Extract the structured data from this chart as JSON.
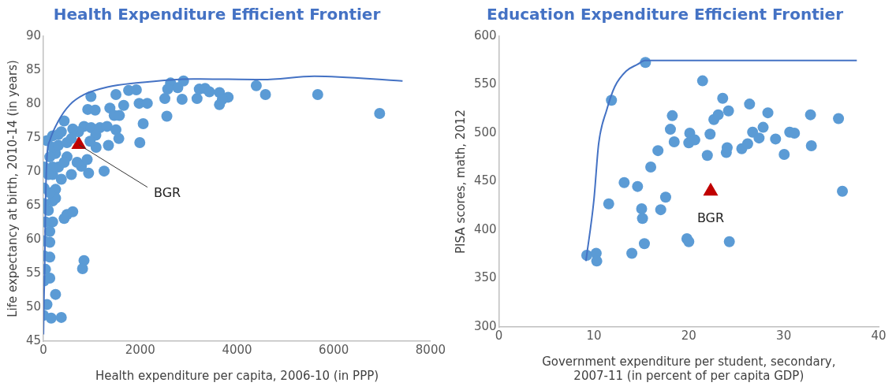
{
  "chart_data": [
    {
      "type": "scatter",
      "title": "Health Expenditure Efficient Frontier",
      "xlabel": "Health expenditure per capita, 2006-10 (in PPP)",
      "ylabel": "Life expectancy at birth, 2010-14 (in years)",
      "xlim": [
        0,
        8000
      ],
      "xticks": [
        0,
        2000,
        4000,
        6000,
        8000
      ],
      "ylim": [
        45,
        90
      ],
      "yticks": [
        45,
        50,
        55,
        60,
        65,
        70,
        75,
        80,
        85,
        90
      ],
      "grid": false,
      "legend": false,
      "annotations": [
        {
          "text": "BGR",
          "x": 731,
          "y": 74
        }
      ],
      "series": [
        {
          "type": "line",
          "marker": "none",
          "color": "#4472c4",
          "x": [
            0,
            12,
            24,
            42,
            72,
            131,
            309,
            547,
            844,
            1320,
            1914,
            3102,
            4528,
            5597,
            7421
          ],
          "values": [
            46,
            51.7,
            55,
            64.8,
            72.2,
            74.6,
            77.5,
            79.9,
            81.4,
            82.5,
            83.1,
            83.7,
            83.6,
            84.1,
            83.4
          ]
        },
        {
          "type": "scatter",
          "marker": "circle",
          "color": "#5b9bd5",
          "x": [
            981,
            1498,
            915,
            1069,
            1373,
            1658,
            1462,
            1569,
            1760,
            1920,
            1979,
            2145,
            2061,
            1991,
            2550,
            2509,
            2627,
            2776,
            2895,
            2865,
            2568,
            3174,
            3221,
            3340,
            3429,
            3637,
            3816,
            3637,
            3697,
            4398,
            4588,
            5668,
            6947,
            428,
            190,
            309,
            838,
            986,
            1165,
            1314,
            1498,
            1557,
            1343,
            1088,
            725,
            606,
            1082,
            1254,
            933,
            784,
            577,
            369,
            250,
            309,
            487,
            695,
            903,
            428,
            250,
            190,
            131,
            12,
            12,
            12,
            190,
            250,
            42,
            190,
            131,
            12,
            131,
            12,
            131,
            42,
            131,
            12,
            72,
            250,
            0,
            160,
            369,
            487,
            606,
            428,
            838,
            808,
            190,
            131,
            309,
            487,
            369,
            576,
            963,
            72,
            190,
            101,
            101
          ],
          "values": [
            81.1,
            81.4,
            79.2,
            79.1,
            79.4,
            79.8,
            78.3,
            78.3,
            82.0,
            82.1,
            80.1,
            80.1,
            77.1,
            74.3,
            78.2,
            80.8,
            83.1,
            82.4,
            83.4,
            80.7,
            82.2,
            80.8,
            82.2,
            82.3,
            81.8,
            81.7,
            81.0,
            79.9,
            80.7,
            82.7,
            81.4,
            81.4,
            78.6,
            77.5,
            75.3,
            75.5,
            76.7,
            76.5,
            76.5,
            76.7,
            76.2,
            74.9,
            73.9,
            73.6,
            75.9,
            76.3,
            75.4,
            70.1,
            69.8,
            70.8,
            69.6,
            68.9,
            67.4,
            70.7,
            72.2,
            71.4,
            71.8,
            71.4,
            72.7,
            73.6,
            72.2,
            70.7,
            67.6,
            65.3,
            65.7,
            66.1,
            62.6,
            62.6,
            61.2,
            59.8,
            59.6,
            57.6,
            57.4,
            55.6,
            54.3,
            53.9,
            50.4,
            51.9,
            48.8,
            48.4,
            48.5,
            63.7,
            64.1,
            63.1,
            56.9,
            55.7,
            69.6,
            66.9,
            73.9,
            74.3,
            75.9,
            74.9,
            74.5,
            74.6,
            70.7,
            64.3,
            69.6
          ]
        },
        {
          "type": "scatter",
          "marker": "triangle",
          "color": "#c00000",
          "x": [
            731
          ],
          "values": [
            74
          ]
        }
      ]
    },
    {
      "type": "scatter",
      "title": "Education Expenditure Efficient Frontier",
      "xlabel": "Government expenditure per student, secondary, 2007-11 (in percent of per capita GDP)",
      "ylabel": "PISA scores, math, 2012",
      "xlim": [
        0,
        40
      ],
      "xticks": [
        0,
        10,
        20,
        30,
        40
      ],
      "ylim": [
        300,
        600
      ],
      "yticks": [
        300,
        350,
        400,
        450,
        500,
        550,
        600
      ],
      "grid": false,
      "legend": false,
      "annotations": [
        {
          "text": "BGR",
          "x": 22.3,
          "y": 440
        }
      ],
      "series": [
        {
          "type": "line",
          "marker": "none",
          "color": "#4472c4",
          "x": [
            9.16,
            10.0,
            10.5,
            11.35,
            12.2,
            13.4,
            14.6,
            15.4,
            37.7
          ],
          "values": [
            368,
            431,
            489,
            524,
            548,
            564,
            571,
            575,
            575
          ]
        },
        {
          "type": "scatter",
          "marker": "circle",
          "color": "#5b9bd5",
          "x": [
            9.25,
            10.24,
            10.3,
            11.85,
            11.56,
            13.19,
            14.0,
            14.6,
            15.03,
            15.12,
            15.32,
            15.43,
            15.99,
            16.75,
            17.04,
            17.56,
            18.06,
            18.26,
            18.46,
            19.8,
            20.0,
            20.0,
            20.1,
            20.63,
            21.45,
            21.95,
            22.24,
            22.64,
            23.1,
            23.57,
            23.95,
            24.04,
            24.18,
            24.27,
            25.58,
            26.2,
            26.4,
            26.72,
            27.4,
            27.83,
            28.33,
            29.14,
            30.05,
            30.63,
            31.13,
            32.82,
            32.91,
            35.77,
            36.18
          ],
          "values": [
            374,
            376,
            368,
            534,
            427,
            449,
            376,
            445,
            422,
            412,
            386,
            573,
            465,
            482,
            421,
            434,
            504,
            518,
            491,
            391,
            388,
            490,
            500,
            493,
            554,
            477,
            499,
            514,
            519,
            536,
            480,
            485,
            523,
            388,
            484,
            489,
            530,
            501,
            495,
            506,
            521,
            494,
            478,
            501,
            500,
            519,
            487,
            515,
            440
          ]
        },
        {
          "type": "scatter",
          "marker": "triangle",
          "color": "#c00000",
          "x": [
            22.3
          ],
          "values": [
            440
          ]
        }
      ]
    }
  ]
}
